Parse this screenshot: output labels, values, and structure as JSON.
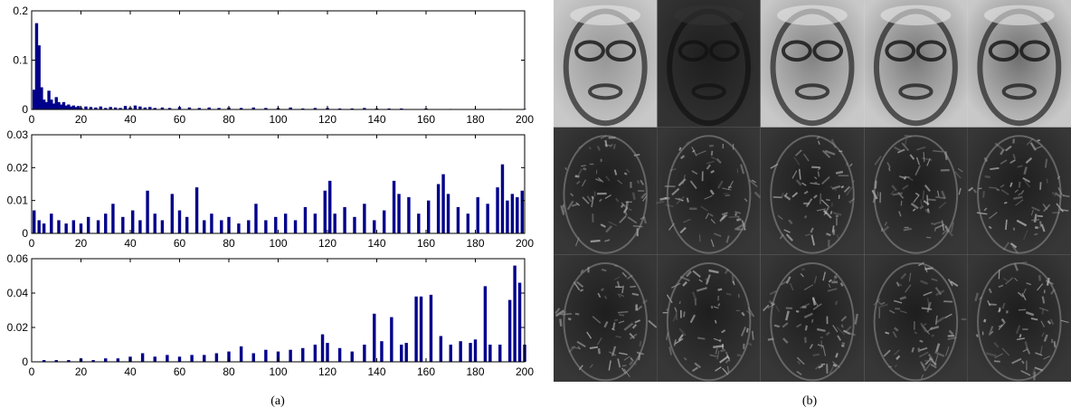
{
  "captions": {
    "left": "(a)",
    "right": "(b)"
  },
  "bar_color": "#00008b",
  "chart_data": [
    {
      "type": "bar",
      "title": "",
      "xlabel": "",
      "ylabel": "",
      "xlim": [
        0,
        200
      ],
      "ylim": [
        0,
        0.2
      ],
      "xticks": [
        0,
        20,
        40,
        60,
        80,
        100,
        120,
        140,
        160,
        180,
        200
      ],
      "yticks": [
        0,
        0.1,
        0.2
      ],
      "ytick_labels": [
        "0",
        "0.1",
        "0.2"
      ],
      "x": [
        1,
        2,
        3,
        4,
        5,
        6,
        7,
        8,
        9,
        10,
        11,
        12,
        13,
        14,
        15,
        16,
        17,
        18,
        19,
        20,
        22,
        24,
        26,
        28,
        30,
        32,
        34,
        36,
        38,
        40,
        42,
        44,
        46,
        48,
        50,
        53,
        56,
        60,
        64,
        68,
        72,
        76,
        80,
        85,
        90,
        95,
        100,
        105,
        110,
        115,
        120,
        125,
        130,
        135,
        140,
        145,
        150,
        160,
        170,
        180,
        190,
        200
      ],
      "values": [
        0.04,
        0.175,
        0.13,
        0.045,
        0.02,
        0.015,
        0.038,
        0.02,
        0.012,
        0.025,
        0.015,
        0.01,
        0.015,
        0.008,
        0.01,
        0.006,
        0.008,
        0.005,
        0.007,
        0.004,
        0.006,
        0.005,
        0.004,
        0.006,
        0.003,
        0.005,
        0.004,
        0.003,
        0.007,
        0.004,
        0.008,
        0.006,
        0.004,
        0.005,
        0.003,
        0.004,
        0.003,
        0.005,
        0.004,
        0.003,
        0.004,
        0.003,
        0.004,
        0.003,
        0.004,
        0.003,
        0.003,
        0.004,
        0.002,
        0.003,
        0.003,
        0.002,
        0.002,
        0.003,
        0.002,
        0.002,
        0.002,
        0.002,
        0.001,
        0.001,
        0.001,
        0.001
      ]
    },
    {
      "type": "bar",
      "title": "",
      "xlabel": "",
      "ylabel": "",
      "xlim": [
        0,
        200
      ],
      "ylim": [
        0,
        0.03
      ],
      "xticks": [
        0,
        20,
        40,
        60,
        80,
        100,
        120,
        140,
        160,
        180,
        200
      ],
      "yticks": [
        0,
        0.01,
        0.02,
        0.03
      ],
      "ytick_labels": [
        "0",
        "0.01",
        "0.02",
        "0.03"
      ],
      "x": [
        1,
        3,
        5,
        8,
        11,
        14,
        17,
        20,
        23,
        27,
        30,
        33,
        37,
        41,
        44,
        47,
        50,
        53,
        57,
        60,
        63,
        67,
        70,
        73,
        77,
        80,
        84,
        88,
        91,
        95,
        99,
        103,
        107,
        111,
        115,
        119,
        121,
        123,
        127,
        131,
        135,
        139,
        143,
        147,
        149,
        153,
        157,
        161,
        165,
        167,
        169,
        173,
        177,
        181,
        185,
        189,
        191,
        193,
        195,
        197,
        199
      ],
      "values": [
        0.007,
        0.004,
        0.003,
        0.006,
        0.004,
        0.003,
        0.004,
        0.003,
        0.005,
        0.004,
        0.006,
        0.009,
        0.005,
        0.007,
        0.004,
        0.013,
        0.006,
        0.004,
        0.012,
        0.007,
        0.005,
        0.014,
        0.004,
        0.006,
        0.004,
        0.005,
        0.003,
        0.004,
        0.009,
        0.004,
        0.005,
        0.006,
        0.004,
        0.008,
        0.006,
        0.013,
        0.016,
        0.006,
        0.008,
        0.005,
        0.009,
        0.004,
        0.007,
        0.016,
        0.012,
        0.011,
        0.006,
        0.01,
        0.015,
        0.018,
        0.012,
        0.008,
        0.006,
        0.011,
        0.009,
        0.014,
        0.021,
        0.01,
        0.012,
        0.011,
        0.013
      ]
    },
    {
      "type": "bar",
      "title": "",
      "xlabel": "",
      "ylabel": "",
      "xlim": [
        0,
        200
      ],
      "ylim": [
        0,
        0.06
      ],
      "xticks": [
        0,
        20,
        40,
        60,
        80,
        100,
        120,
        140,
        160,
        180,
        200
      ],
      "yticks": [
        0,
        0.02,
        0.04,
        0.06
      ],
      "ytick_labels": [
        "0",
        "0.02",
        "0.04",
        "0.06"
      ],
      "x": [
        5,
        10,
        15,
        20,
        25,
        30,
        35,
        40,
        45,
        50,
        55,
        60,
        65,
        70,
        75,
        80,
        85,
        90,
        95,
        100,
        105,
        110,
        115,
        118,
        120,
        125,
        130,
        135,
        139,
        142,
        146,
        150,
        152,
        156,
        158,
        162,
        166,
        170,
        174,
        178,
        180,
        184,
        186,
        190,
        194,
        196,
        198,
        200
      ],
      "values": [
        0.001,
        0.001,
        0.001,
        0.002,
        0.001,
        0.002,
        0.002,
        0.003,
        0.005,
        0.003,
        0.004,
        0.003,
        0.004,
        0.004,
        0.005,
        0.006,
        0.009,
        0.005,
        0.007,
        0.006,
        0.007,
        0.008,
        0.01,
        0.016,
        0.011,
        0.008,
        0.006,
        0.01,
        0.028,
        0.012,
        0.026,
        0.01,
        0.011,
        0.038,
        0.038,
        0.039,
        0.015,
        0.01,
        0.012,
        0.011,
        0.013,
        0.044,
        0.01,
        0.01,
        0.036,
        0.056,
        0.046,
        0.01
      ]
    }
  ],
  "face_grid": {
    "rows": 3,
    "cols": 5,
    "row_styles": [
      "smooth",
      "noisy",
      "noisy"
    ]
  }
}
